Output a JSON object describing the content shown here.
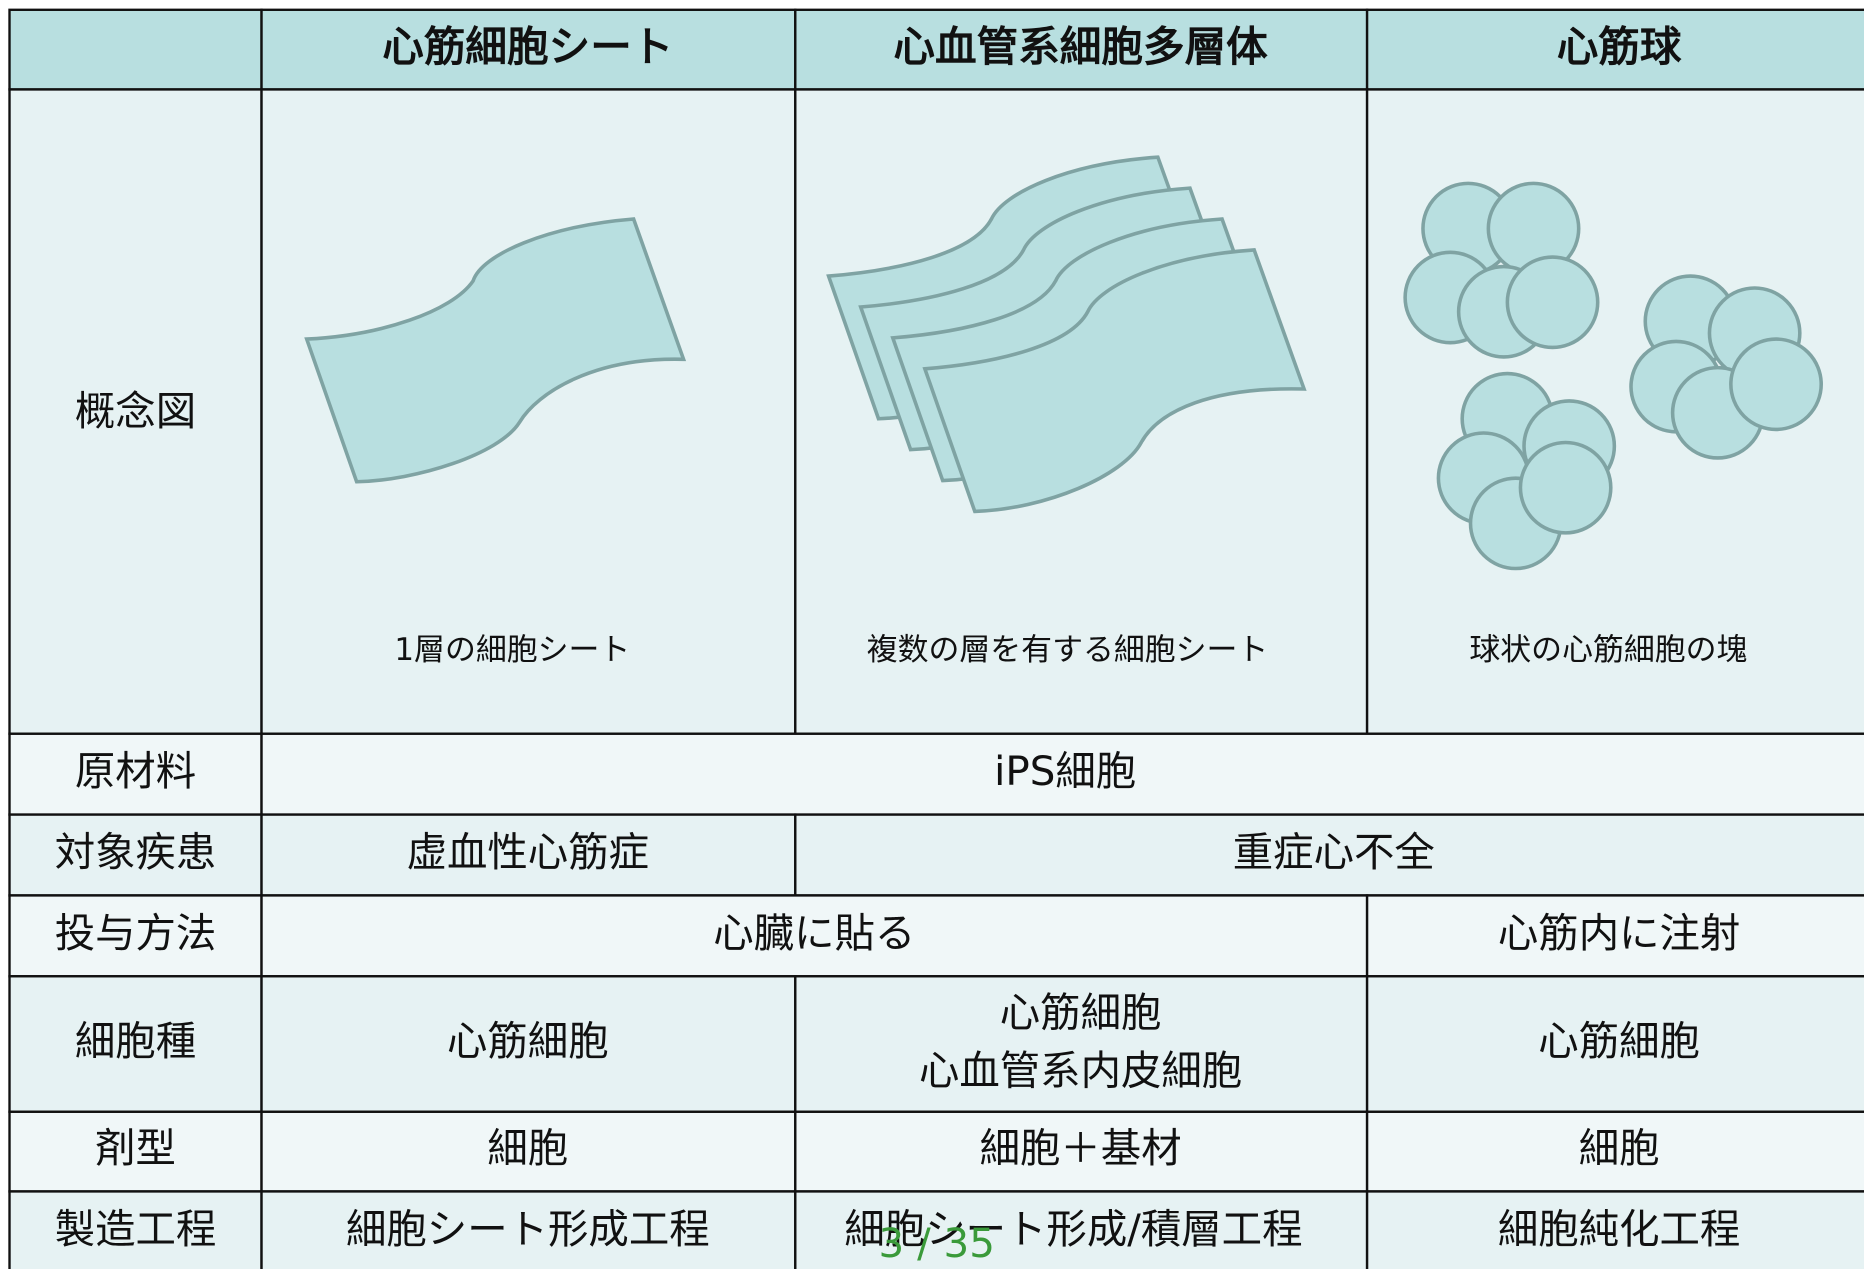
{
  "table": {
    "columns": [
      "心筋細胞シート",
      "心血管系細胞多層体",
      "心筋球"
    ],
    "rows": [
      {
        "label": "概念図",
        "cells": [
          "1層の細胞シート",
          "複数の層を有する細胞シート",
          "球状の心筋細胞の塊"
        ]
      },
      {
        "label": "原材料",
        "cells": [
          "iPS細胞"
        ]
      },
      {
        "label": "対象疾患",
        "cells": [
          "虚血性心筋症",
          "重症心不全"
        ]
      },
      {
        "label": "投与方法",
        "cells": [
          "心臓に貼る",
          "心筋内に注射"
        ]
      },
      {
        "label": "細胞種",
        "cells": [
          "心筋細胞",
          [
            "心筋細胞",
            "心血管系内皮細胞"
          ],
          "心筋細胞"
        ]
      },
      {
        "label": "剤型",
        "cells": [
          "細胞",
          "細胞＋基材",
          "細胞"
        ]
      },
      {
        "label": "製造工程",
        "cells": [
          "細胞シート形成工程",
          "細胞シート形成/積層工程",
          "細胞純化工程"
        ]
      }
    ]
  },
  "page_indicator": "3 / 35"
}
